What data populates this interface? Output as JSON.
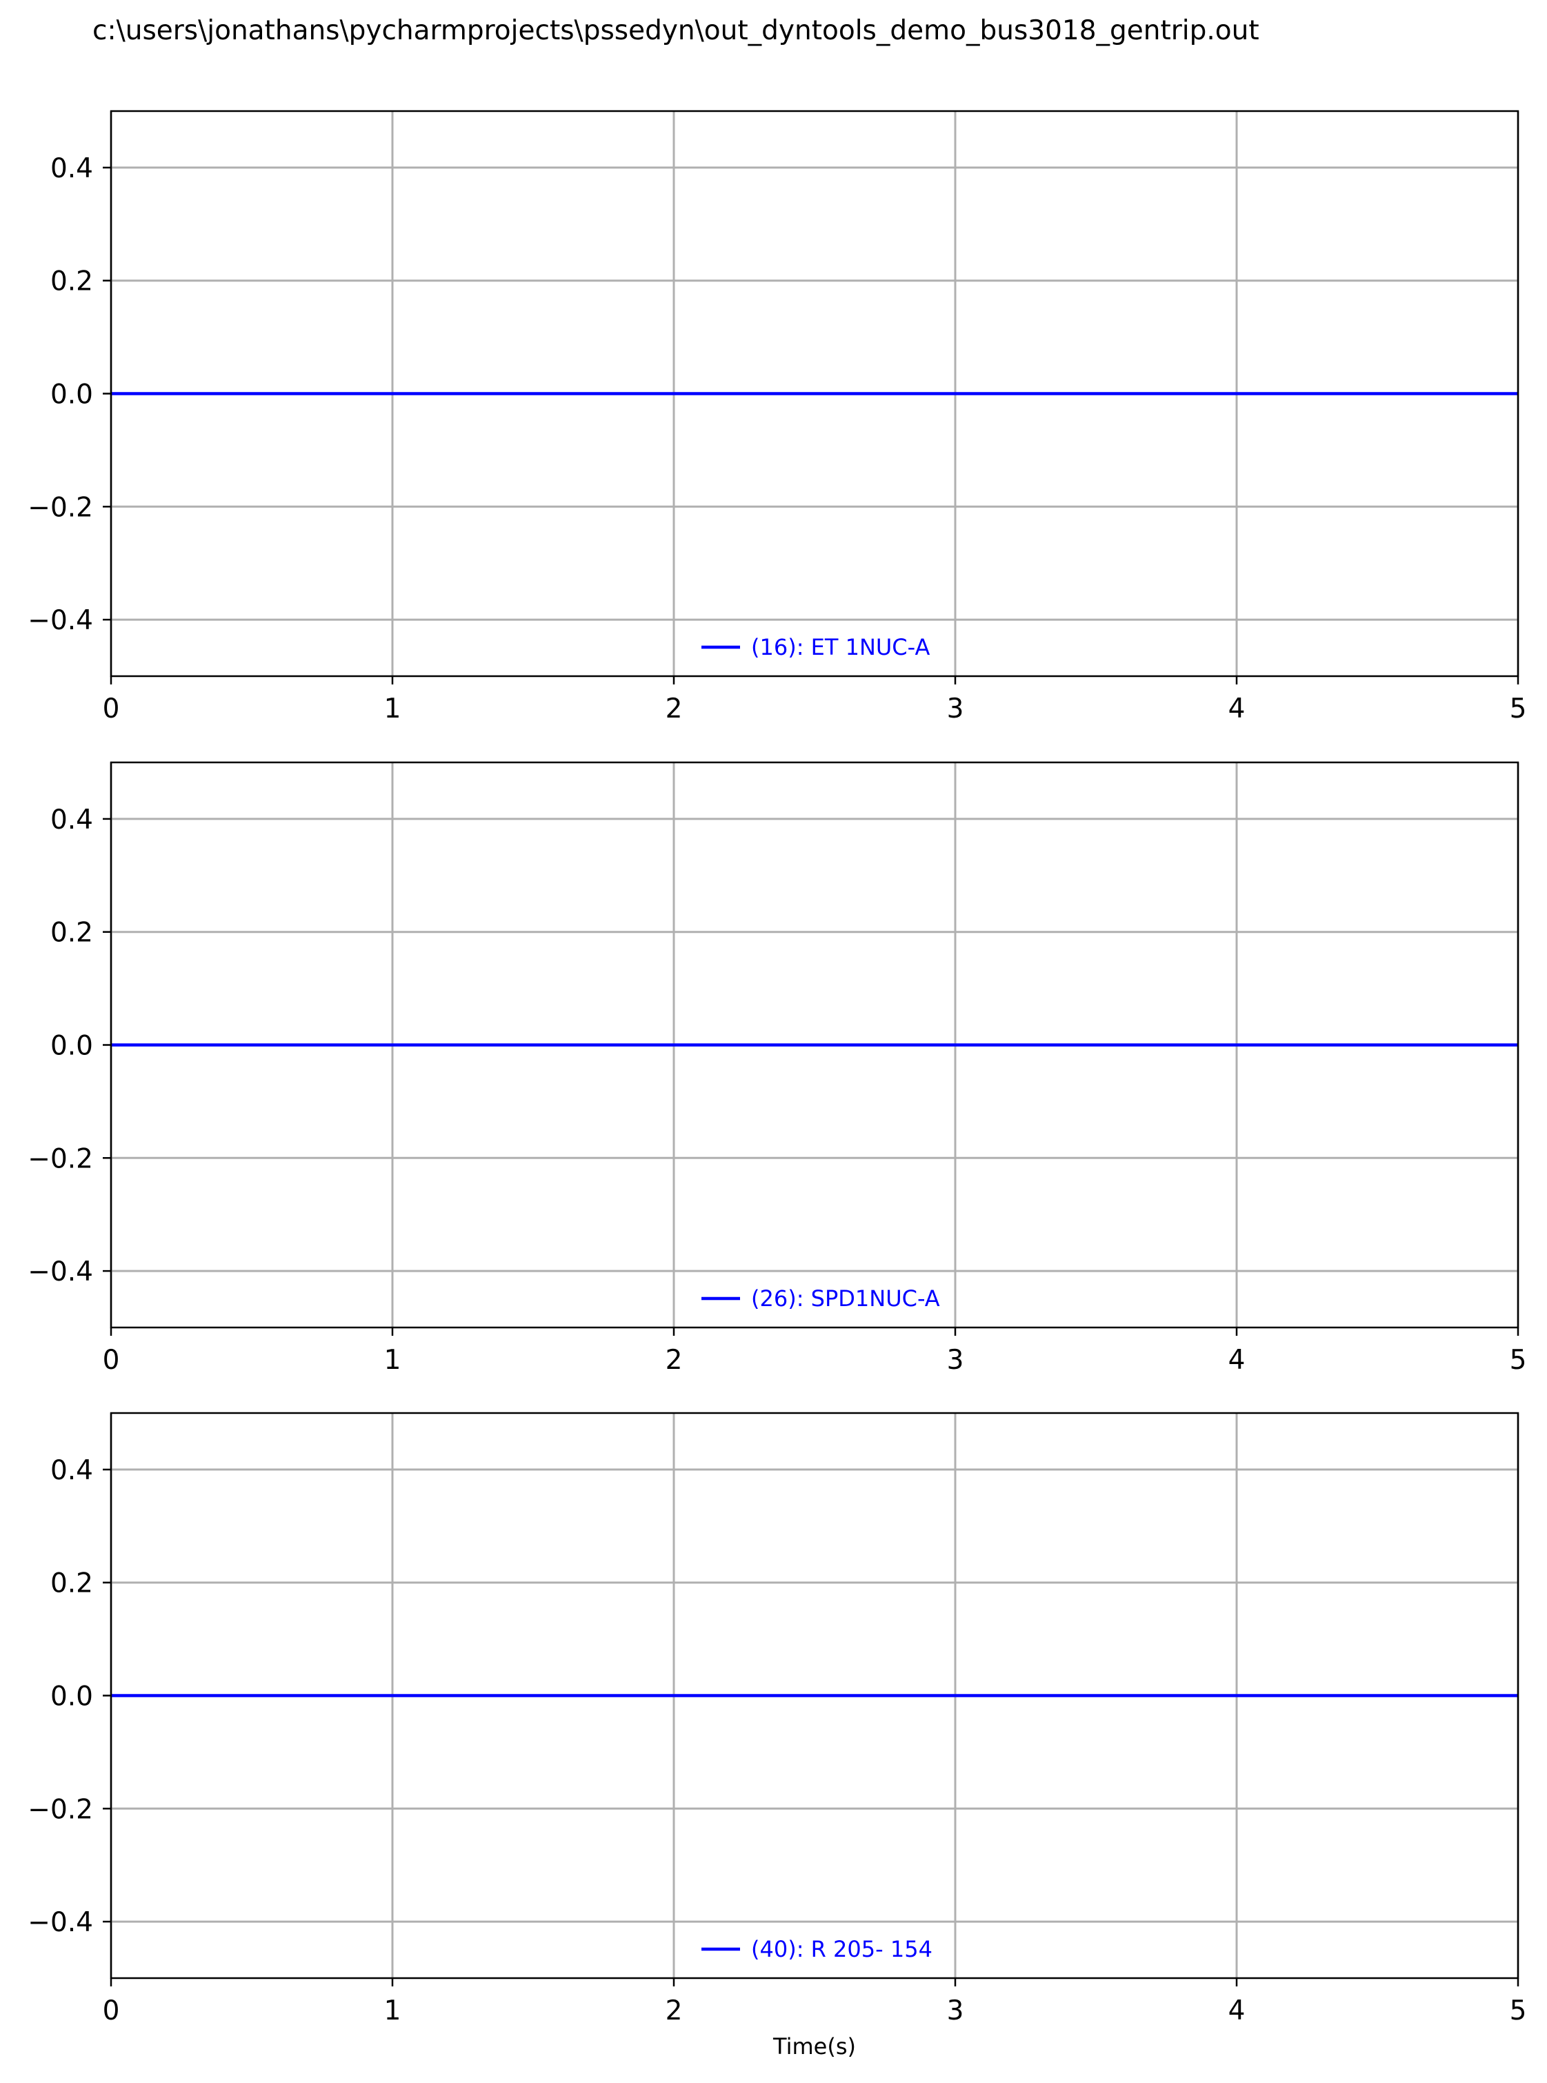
{
  "figure": {
    "title": "c:\\users\\jonathans\\pycharmprojects\\pssedyn\\out_dyntools_demo_bus3018_gentrip.out"
  },
  "colors": {
    "series": "#0000ff",
    "grid": "#b0b0b0",
    "axes": "#000000"
  },
  "chart_data": [
    {
      "type": "line",
      "title": "",
      "xlabel": "",
      "ylabel": "",
      "xlim": [
        0,
        5
      ],
      "ylim": [
        -0.5,
        0.5
      ],
      "xticks": [
        0,
        1,
        2,
        3,
        4,
        5
      ],
      "xtick_labels": [
        "0",
        "1",
        "2",
        "3",
        "4",
        "5"
      ],
      "yticks": [
        0.4,
        0.2,
        0.0,
        -0.2,
        -0.4
      ],
      "ytick_labels": [
        "0.4",
        "0.2",
        "0.0",
        "−0.2",
        "−0.4"
      ],
      "grid": true,
      "legend_position": "lower-center",
      "series": [
        {
          "name": "(16): ET 1NUC-A",
          "x": [
            0,
            5
          ],
          "y": [
            0.0,
            0.0
          ]
        }
      ]
    },
    {
      "type": "line",
      "title": "",
      "xlabel": "",
      "ylabel": "",
      "xlim": [
        0,
        5
      ],
      "ylim": [
        -0.5,
        0.5
      ],
      "xticks": [
        0,
        1,
        2,
        3,
        4,
        5
      ],
      "xtick_labels": [
        "0",
        "1",
        "2",
        "3",
        "4",
        "5"
      ],
      "yticks": [
        0.4,
        0.2,
        0.0,
        -0.2,
        -0.4
      ],
      "ytick_labels": [
        "0.4",
        "0.2",
        "0.0",
        "−0.2",
        "−0.4"
      ],
      "grid": true,
      "legend_position": "lower-center",
      "series": [
        {
          "name": "(26): SPD1NUC-A",
          "x": [
            0,
            5
          ],
          "y": [
            0.0,
            0.0
          ]
        }
      ]
    },
    {
      "type": "line",
      "title": "",
      "xlabel": "Time(s)",
      "ylabel": "",
      "xlim": [
        0,
        5
      ],
      "ylim": [
        -0.5,
        0.5
      ],
      "xticks": [
        0,
        1,
        2,
        3,
        4,
        5
      ],
      "xtick_labels": [
        "0",
        "1",
        "2",
        "3",
        "4",
        "5"
      ],
      "yticks": [
        0.4,
        0.2,
        0.0,
        -0.2,
        -0.4
      ],
      "ytick_labels": [
        "0.4",
        "0.2",
        "0.0",
        "−0.2",
        "−0.4"
      ],
      "grid": true,
      "legend_position": "lower-center",
      "series": [
        {
          "name": "(40): R 205- 154",
          "x": [
            0,
            5
          ],
          "y": [
            0.0,
            0.0
          ]
        }
      ]
    }
  ]
}
